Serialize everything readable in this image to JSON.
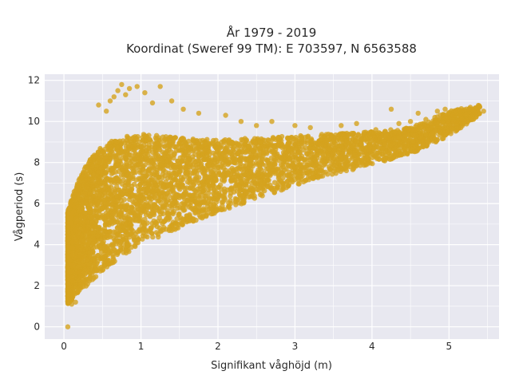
{
  "chart_data": {
    "type": "scatter",
    "title_line1": "År 1979 - 2019",
    "title_line2": "Koordinat (Sweref 99 TM): E 703597, N 6563588",
    "xlabel": "Signifikant våghöjd (m)",
    "ylabel": "Vågperiod (s)",
    "xlim": [
      -0.25,
      5.65
    ],
    "ylim": [
      -0.6,
      12.3
    ],
    "x_ticks": [
      0,
      1,
      2,
      3,
      4,
      5
    ],
    "y_ticks": [
      0,
      2,
      4,
      6,
      8,
      10,
      12
    ],
    "grid": true,
    "marker_color": "#d4a21e",
    "plot_background": "#e8e8f0",
    "density_band": [
      [
        0.05,
        1.1,
        5.6
      ],
      [
        0.1,
        1.3,
        6.3
      ],
      [
        0.2,
        1.7,
        7.2
      ],
      [
        0.3,
        2.0,
        8.0
      ],
      [
        0.5,
        2.7,
        8.8
      ],
      [
        0.7,
        3.3,
        9.2
      ],
      [
        1.0,
        4.0,
        9.4
      ],
      [
        1.5,
        4.8,
        9.2
      ],
      [
        2.0,
        5.6,
        9.1
      ],
      [
        2.5,
        6.2,
        9.2
      ],
      [
        3.0,
        6.9,
        9.3
      ],
      [
        3.5,
        7.4,
        9.4
      ],
      [
        4.0,
        7.9,
        9.5
      ],
      [
        4.5,
        8.4,
        9.7
      ],
      [
        5.0,
        9.3,
        10.5
      ],
      [
        5.4,
        10.3,
        10.8
      ]
    ],
    "outlier_points": [
      [
        0.05,
        0.0
      ],
      [
        0.45,
        10.8
      ],
      [
        0.55,
        10.5
      ],
      [
        0.6,
        11.0
      ],
      [
        0.65,
        11.2
      ],
      [
        0.7,
        11.5
      ],
      [
        0.75,
        11.8
      ],
      [
        0.8,
        11.3
      ],
      [
        0.85,
        11.6
      ],
      [
        0.95,
        11.7
      ],
      [
        1.05,
        11.4
      ],
      [
        1.15,
        10.9
      ],
      [
        1.25,
        11.7
      ],
      [
        1.4,
        11.0
      ],
      [
        1.55,
        10.6
      ],
      [
        1.75,
        10.4
      ],
      [
        2.1,
        10.3
      ],
      [
        2.3,
        10.0
      ],
      [
        2.5,
        9.8
      ],
      [
        2.7,
        10.0
      ],
      [
        3.0,
        9.8
      ],
      [
        3.2,
        9.7
      ],
      [
        3.6,
        9.8
      ],
      [
        3.8,
        9.9
      ],
      [
        4.05,
        9.6
      ],
      [
        4.25,
        10.6
      ],
      [
        4.35,
        9.9
      ],
      [
        4.5,
        10.0
      ],
      [
        4.6,
        10.4
      ],
      [
        4.7,
        10.1
      ],
      [
        4.85,
        10.5
      ],
      [
        4.95,
        10.6
      ],
      [
        5.1,
        9.8
      ],
      [
        5.2,
        10.0
      ],
      [
        5.3,
        10.6
      ],
      [
        5.4,
        10.7
      ],
      [
        5.45,
        10.5
      ],
      [
        4.1,
        9.2
      ],
      [
        3.9,
        9.1
      ],
      [
        4.3,
        9.5
      ],
      [
        0.2,
        6.8
      ],
      [
        0.3,
        7.6
      ],
      [
        0.15,
        1.2
      ],
      [
        0.1,
        1.1
      ]
    ]
  }
}
